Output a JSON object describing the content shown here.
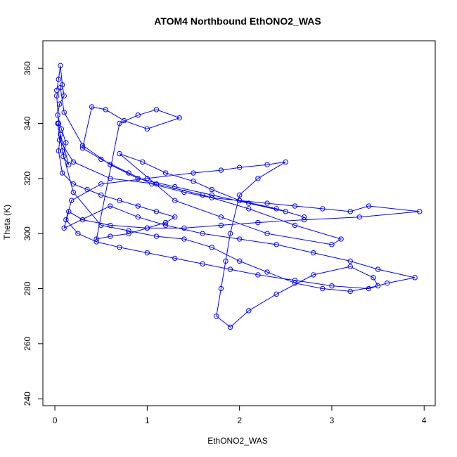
{
  "chart_data": {
    "type": "line",
    "title": "ATOM4 Northbound EthONO2_WAS",
    "xlabel": "EthONO2_WAS",
    "ylabel": "Theta (K)",
    "xlim": [
      -0.13,
      4.12
    ],
    "ylim": [
      237.5,
      370
    ],
    "xticks": [
      0,
      1,
      2,
      3,
      4
    ],
    "yticks": [
      240,
      260,
      280,
      300,
      320,
      340,
      360
    ],
    "grid": false,
    "legend": "none",
    "series": [
      {
        "color": "#0000ff",
        "marker": "open-circle",
        "x": [
          0.02,
          0.04,
          0.06,
          0.08,
          0.1,
          0.05,
          0.03,
          0.07,
          0.12,
          0.09,
          0.15,
          0.06,
          0.04,
          0.08,
          0.2,
          0.35,
          0.5,
          0.7,
          0.9,
          1.1,
          1.3,
          1.2,
          1.0,
          0.8,
          0.6,
          0.45,
          0.7,
          0.9,
          1.1,
          1.35,
          1.0,
          0.75,
          0.55,
          0.4,
          0.3,
          0.5,
          0.8,
          1.05,
          1.4,
          1.7,
          2.0,
          2.3,
          2.6,
          2.9,
          3.2,
          3.4,
          3.95,
          3.3,
          2.7,
          2.2,
          1.8,
          1.4,
          1.0,
          0.6,
          0.3,
          0.15,
          0.1,
          0.6,
          0.9,
          1.2,
          1.6,
          2.0,
          2.4,
          2.8,
          3.2,
          3.5,
          3.9,
          3.6,
          3.4,
          3.0,
          2.6,
          2.2,
          1.9,
          1.6,
          1.3,
          1.0,
          0.7,
          0.45,
          0.25,
          0.12,
          0.18,
          0.5,
          1.0,
          1.5,
          1.8,
          2.0,
          2.3,
          2.5,
          2.2,
          2.0,
          1.9,
          1.85,
          1.8,
          1.75,
          1.9,
          2.1,
          2.4,
          2.8,
          3.2,
          3.45,
          3.5,
          3.2,
          2.9,
          2.6,
          2.3,
          2.0,
          1.7,
          1.4,
          1.1,
          0.8,
          0.5,
          0.2,
          0.08,
          0.04,
          0.02,
          0.06,
          0.1,
          0.3,
          0.6,
          0.9,
          1.3,
          1.7,
          2.1,
          2.5,
          2.7,
          2.4,
          2.0,
          1.7,
          1.5,
          1.2,
          0.95,
          0.7,
          1.3,
          1.8,
          2.3,
          3.0,
          3.1,
          2.6,
          2.1,
          1.6,
          1.1,
          0.6,
          0.2,
          0.05,
          0.03
        ],
        "y": [
          352,
          356,
          361,
          354,
          350,
          347,
          343,
          338,
          333,
          328,
          325,
          336,
          330,
          322,
          318,
          316,
          314,
          312,
          310,
          308,
          306,
          304,
          302,
          300,
          299,
          298,
          340,
          343,
          345,
          342,
          338,
          341,
          345,
          346,
          331,
          327,
          322,
          318,
          315,
          313,
          312,
          311,
          310,
          309,
          308,
          310,
          308,
          306,
          305,
          304,
          303,
          302,
          302,
          303,
          305,
          308,
          302,
          310,
          306,
          303,
          300,
          298,
          296,
          293,
          290,
          287,
          284,
          282,
          280,
          281,
          283,
          285,
          287,
          289,
          291,
          293,
          295,
          297,
          300,
          305,
          312,
          318,
          320,
          322,
          323,
          324,
          325,
          326,
          320,
          314,
          300,
          290,
          280,
          270,
          266,
          272,
          278,
          285,
          288,
          284,
          281,
          279,
          280,
          282,
          286,
          290,
          295,
          298,
          299,
          301,
          303,
          315,
          330,
          340,
          350,
          353,
          344,
          332,
          325,
          320,
          317,
          314,
          311,
          308,
          306,
          309,
          312,
          316,
          319,
          322,
          326,
          329,
          312,
          306,
          300,
          296,
          298,
          303,
          309,
          314,
          318,
          320,
          326,
          334,
          340
        ]
      }
    ]
  }
}
